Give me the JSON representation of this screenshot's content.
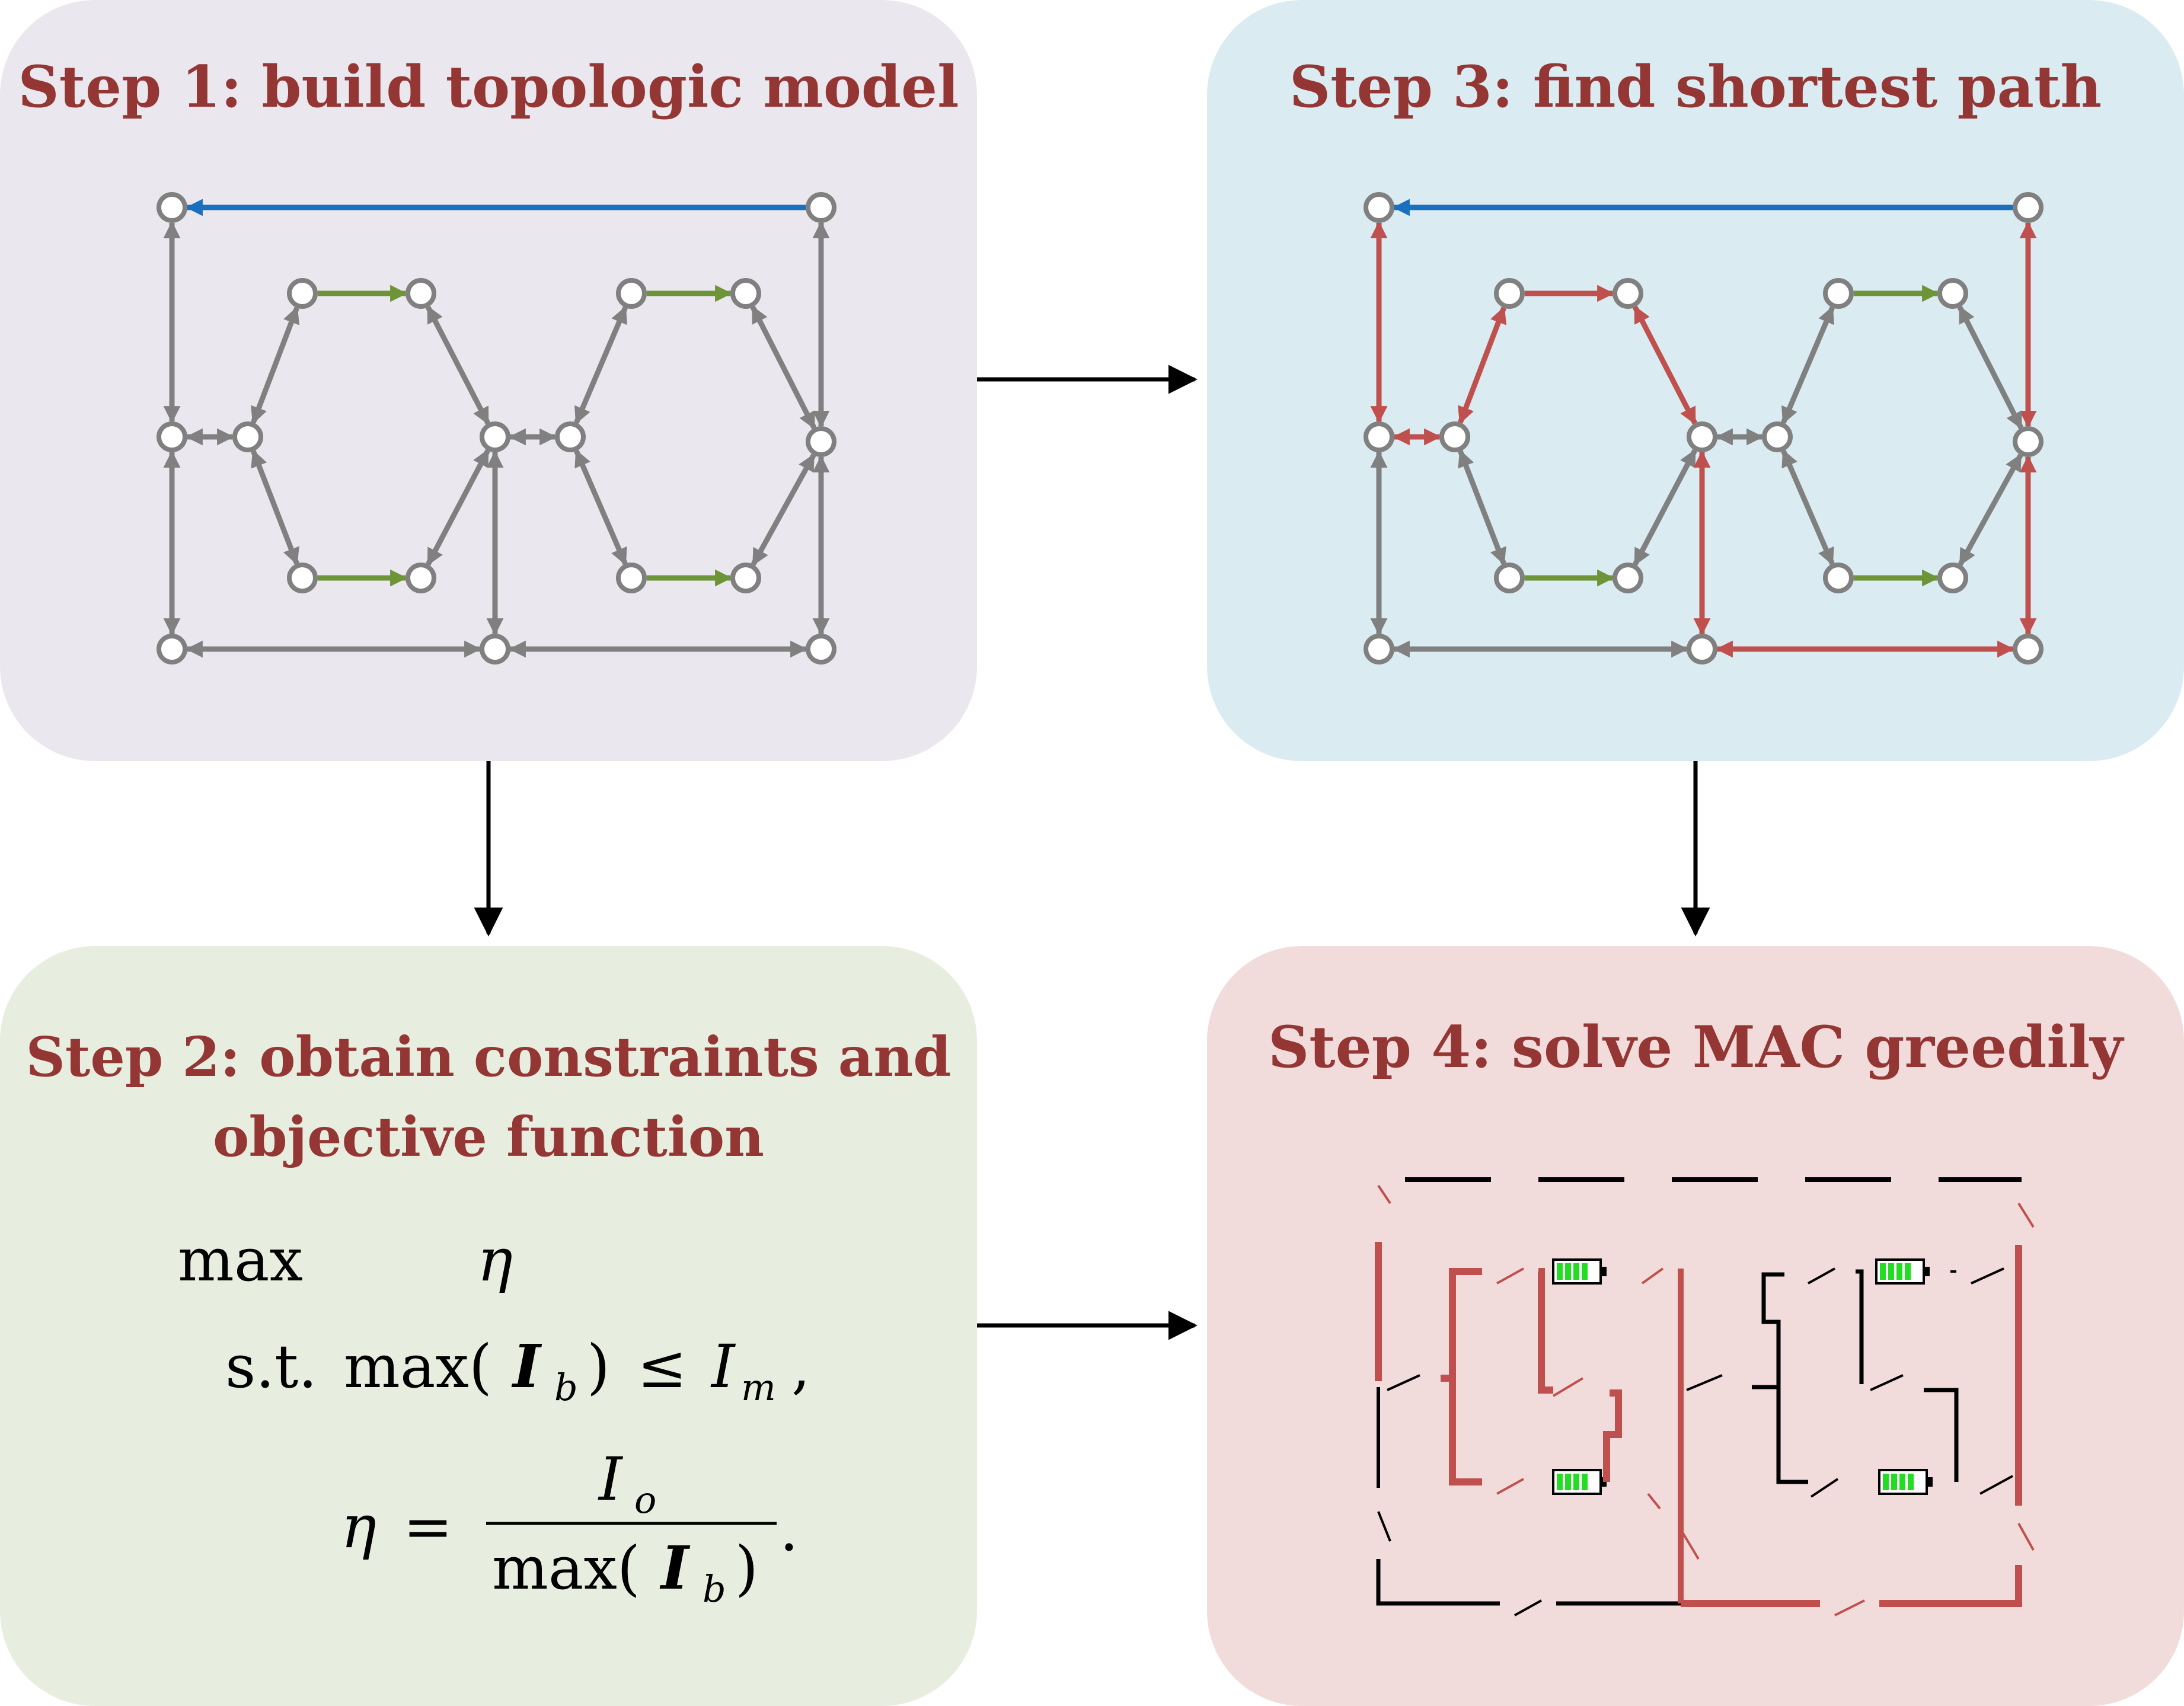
{
  "colors": {
    "panel1_bg": "#ebe7ef",
    "panel2_bg": "#e8eedf",
    "panel3_bg": "#daecf2",
    "panel4_bg": "#f2dcdb",
    "title": "#943634",
    "edge_gray": "#808080",
    "edge_green": "#6e9438",
    "edge_blue": "#1a6fbf",
    "edge_red": "#c0504d",
    "battery_fill": "#22dd22",
    "wire_black": "#000000",
    "flow_arrow": "#000000"
  },
  "panels": {
    "step1": {
      "title": "Step 1: build topologic model"
    },
    "step2": {
      "title_line1": "Step 2: obtain constraints and",
      "title_line2": "objective function",
      "formula": {
        "max_word": "max",
        "eta": "η",
        "st": "s.t.",
        "max2": "max(",
        "I": "I",
        "b": "b",
        "close": ")",
        "le": "≤",
        "Im_I": "I",
        "Im_m": "m",
        "comma": ",",
        "eq_lhs": "η",
        "eq": "=",
        "num_I": "I",
        "num_o": "o",
        "den_max": "max(",
        "den_I": "I",
        "den_b": "b",
        "den_close": ")",
        "period": "."
      }
    },
    "step3": {
      "title": "Step 3: find shortest path"
    },
    "step4": {
      "title": "Step 4: solve MAC greedily"
    }
  },
  "graph": {
    "description_nodes": [
      "n1",
      "n2",
      "n3",
      "n4",
      "n5",
      "n6",
      "n7",
      "n8",
      "n9",
      "n10",
      "n11",
      "n12",
      "n13",
      "n14",
      "n15",
      "n16",
      "n17",
      "n18"
    ]
  }
}
